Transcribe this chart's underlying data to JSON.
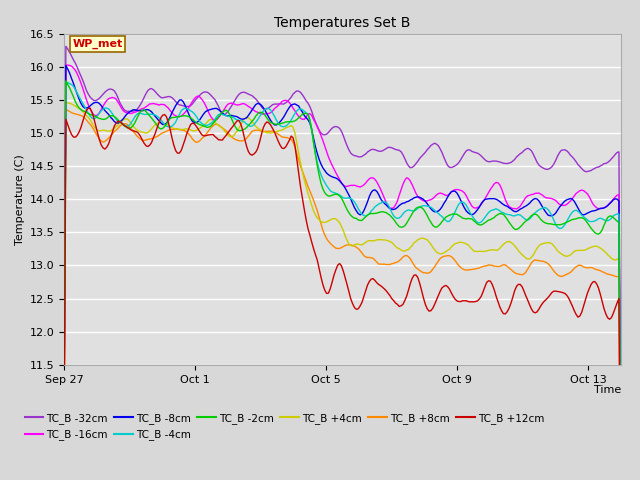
{
  "title": "Temperatures Set B",
  "xlabel": "Time",
  "ylabel": "Temperature (C)",
  "ylim": [
    11.5,
    16.5
  ],
  "yticks": [
    11.5,
    12.0,
    12.5,
    13.0,
    13.5,
    14.0,
    14.5,
    15.0,
    15.5,
    16.0,
    16.5
  ],
  "xtick_pos": [
    0,
    4,
    8,
    12,
    16
  ],
  "xtick_labels": [
    "Sep 27",
    "Oct 1",
    "Oct 5",
    "Oct 9",
    "Oct 13"
  ],
  "series_order": [
    "TC_B -32cm",
    "TC_B -16cm",
    "TC_B -8cm",
    "TC_B -4cm",
    "TC_B -2cm",
    "TC_B +4cm",
    "TC_B +8cm",
    "TC_B +12cm"
  ],
  "colors": {
    "TC_B -32cm": "#9933cc",
    "TC_B -16cm": "#ff00ff",
    "TC_B -8cm": "#0000ee",
    "TC_B -4cm": "#00cccc",
    "TC_B -2cm": "#00cc00",
    "TC_B +4cm": "#cccc00",
    "TC_B +8cm": "#ff8800",
    "TC_B +12cm": "#cc0000"
  },
  "wp_met_label": "WP_met",
  "wp_met_color": "#cc0000",
  "wp_met_bg": "#ffffcc",
  "wp_met_border": "#996600",
  "fig_bg": "#d8d8d8",
  "plot_bg": "#e0e0e0",
  "grid_color": "#ffffff",
  "linewidth": 1.0,
  "legend_ncol": 6,
  "n_points": 300,
  "xlim": [
    0,
    17
  ]
}
